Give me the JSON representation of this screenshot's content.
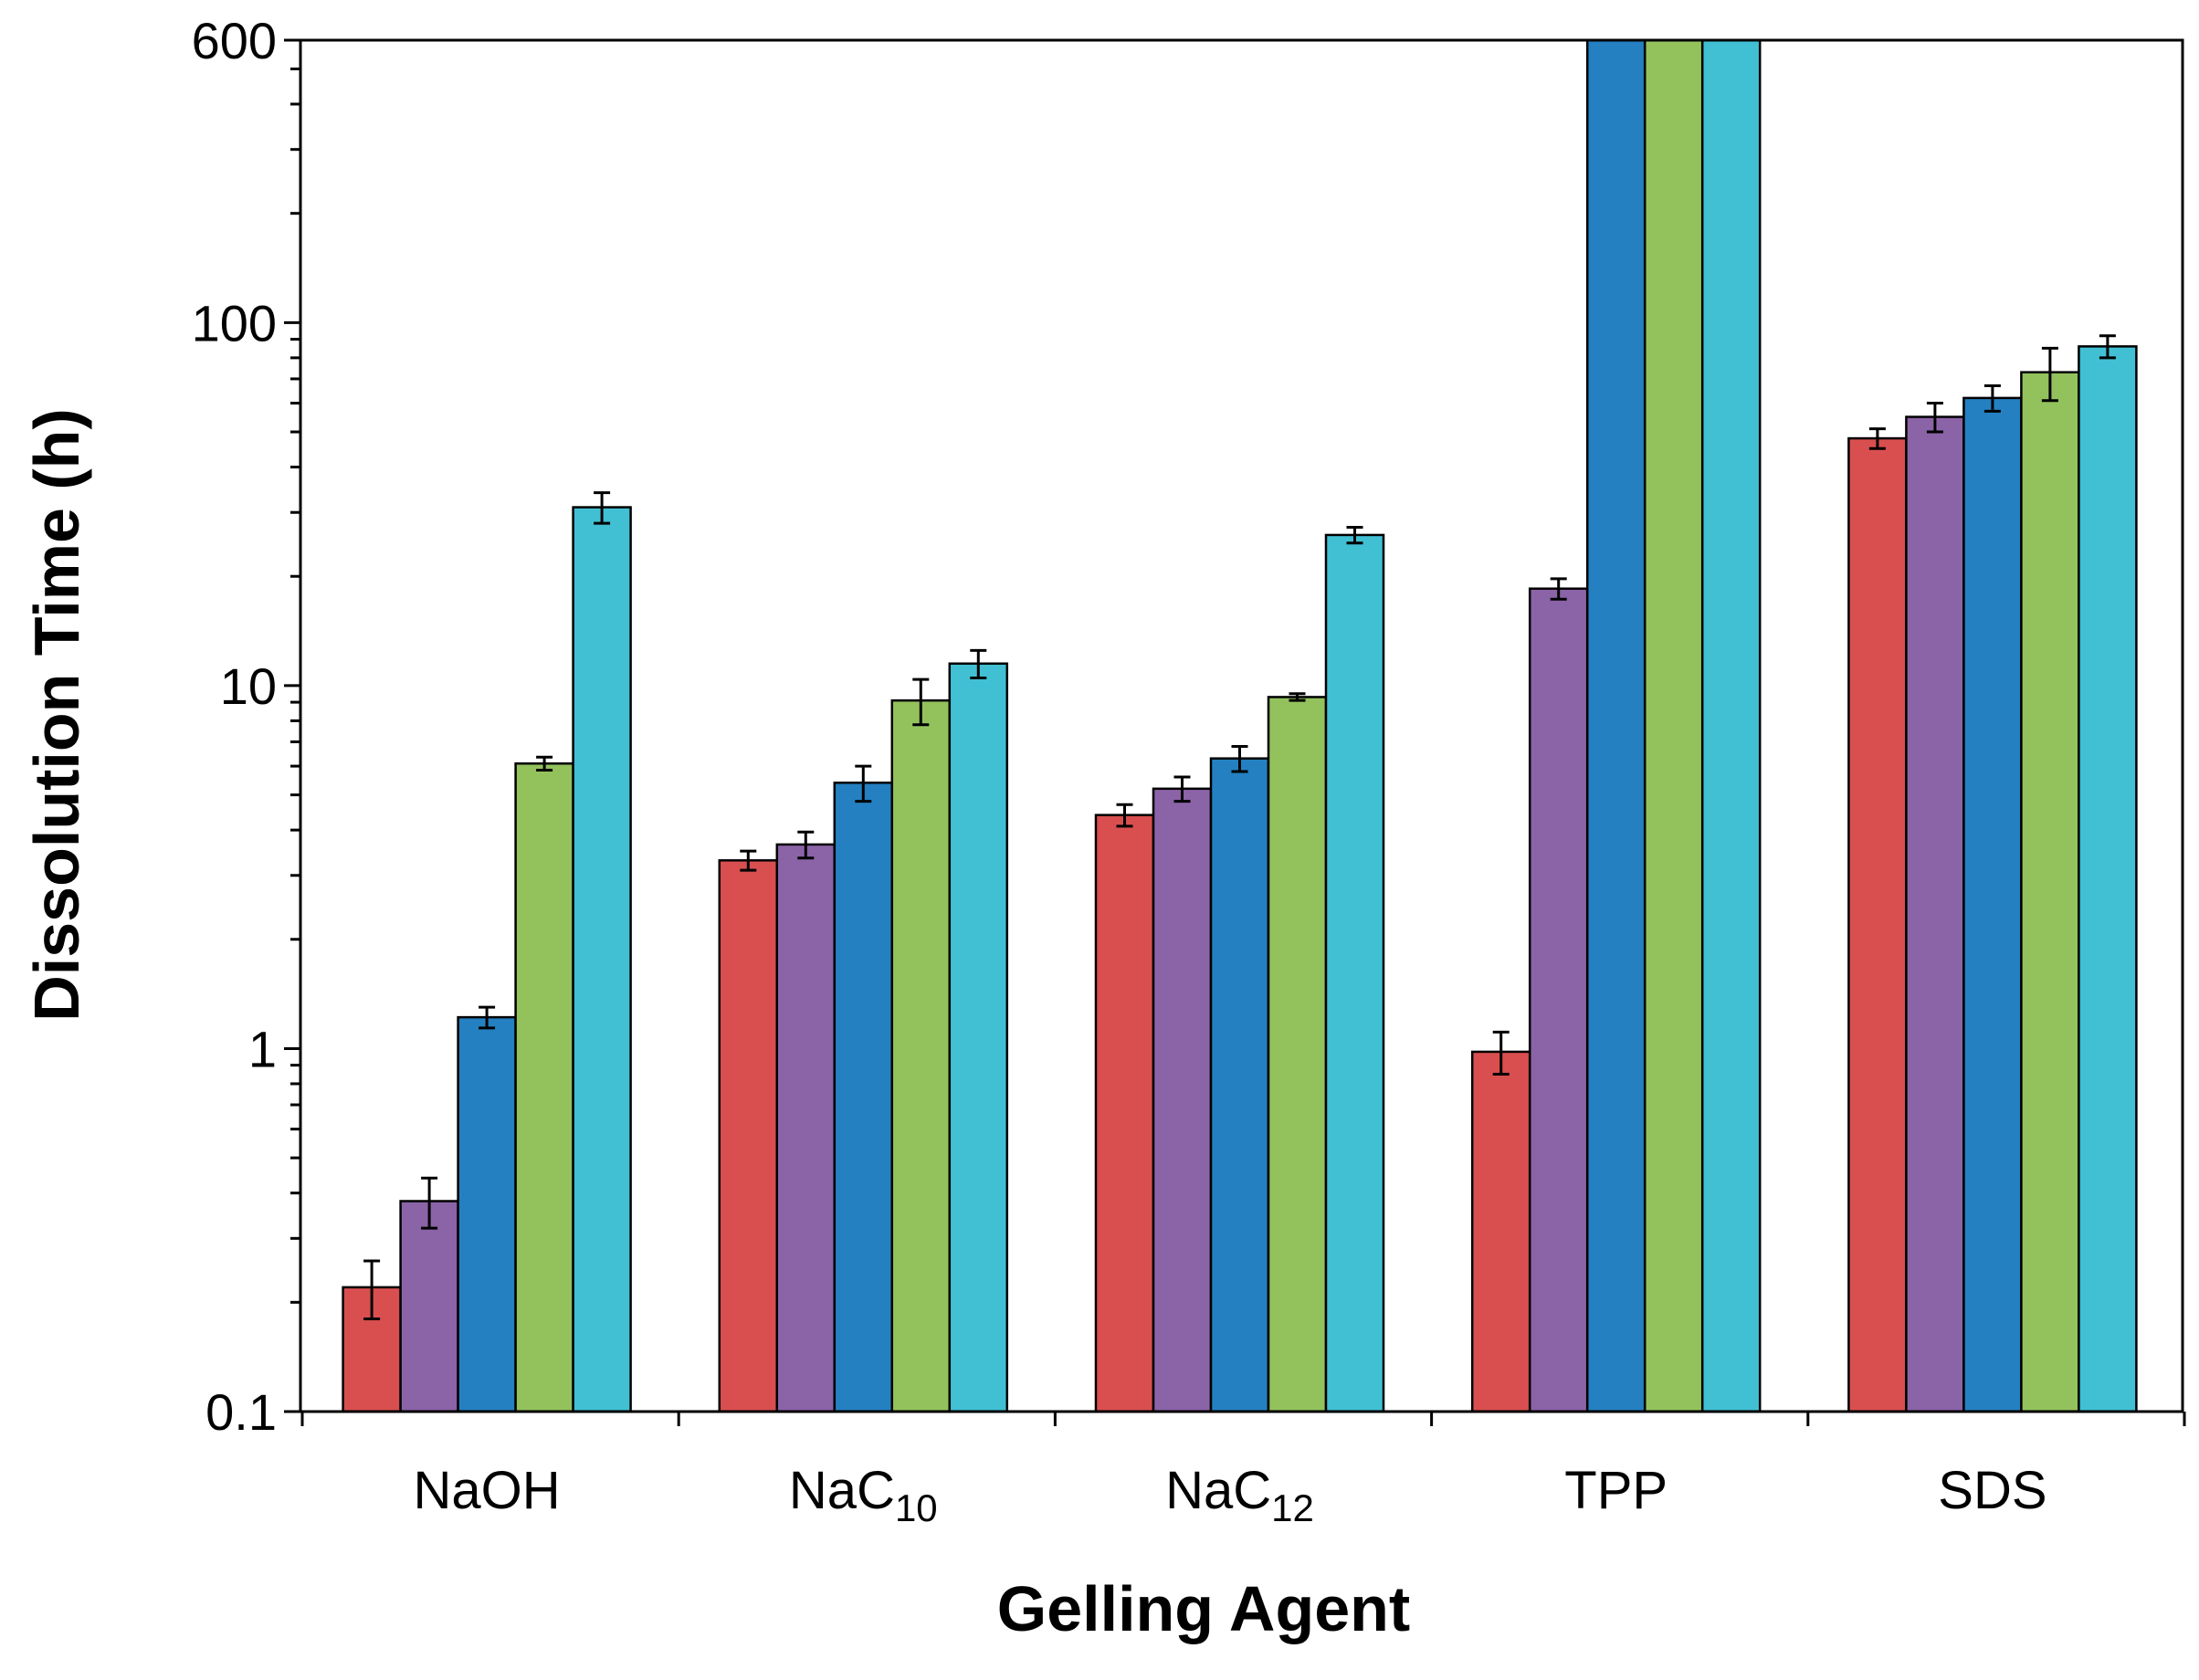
{
  "chart_data": {
    "type": "bar",
    "yscale": "log",
    "title": "",
    "xlabel": "Gelling Agent",
    "ylabel": "Dissolution Time (h)",
    "ylim": [
      0.1,
      600
    ],
    "y_ticks": [
      0.1,
      1,
      10,
      100,
      600
    ],
    "y_tick_labels": [
      "0.1",
      "1",
      "10",
      "100",
      "600"
    ],
    "categories": [
      {
        "main": "NaOH",
        "sub": ""
      },
      {
        "main": "NaC",
        "sub": "10"
      },
      {
        "main": "NaC",
        "sub": "12"
      },
      {
        "main": "TPP",
        "sub": ""
      },
      {
        "main": "SDS",
        "sub": ""
      }
    ],
    "series_colors": [
      "#d94f4f",
      "#8b63a7",
      "#2480c1",
      "#93c25d",
      "#41c0d4"
    ],
    "values": [
      [
        0.22,
        0.38,
        1.22,
        6.1,
        31
      ],
      [
        3.3,
        3.65,
        5.4,
        9.1,
        11.5
      ],
      [
        4.4,
        5.2,
        6.3,
        9.3,
        26
      ],
      [
        0.98,
        18.5,
        600,
        600,
        600
      ],
      [
        48,
        55,
        62,
        73,
        86
      ]
    ],
    "errors": [
      [
        0.04,
        0.06,
        0.08,
        0.25,
        3
      ],
      [
        0.2,
        0.3,
        0.6,
        1.3,
        1
      ],
      [
        0.3,
        0.4,
        0.5,
        0.2,
        1.3
      ],
      [
        0.13,
        1.2,
        null,
        null,
        null
      ],
      [
        3,
        5,
        5,
        12,
        6
      ]
    ]
  }
}
